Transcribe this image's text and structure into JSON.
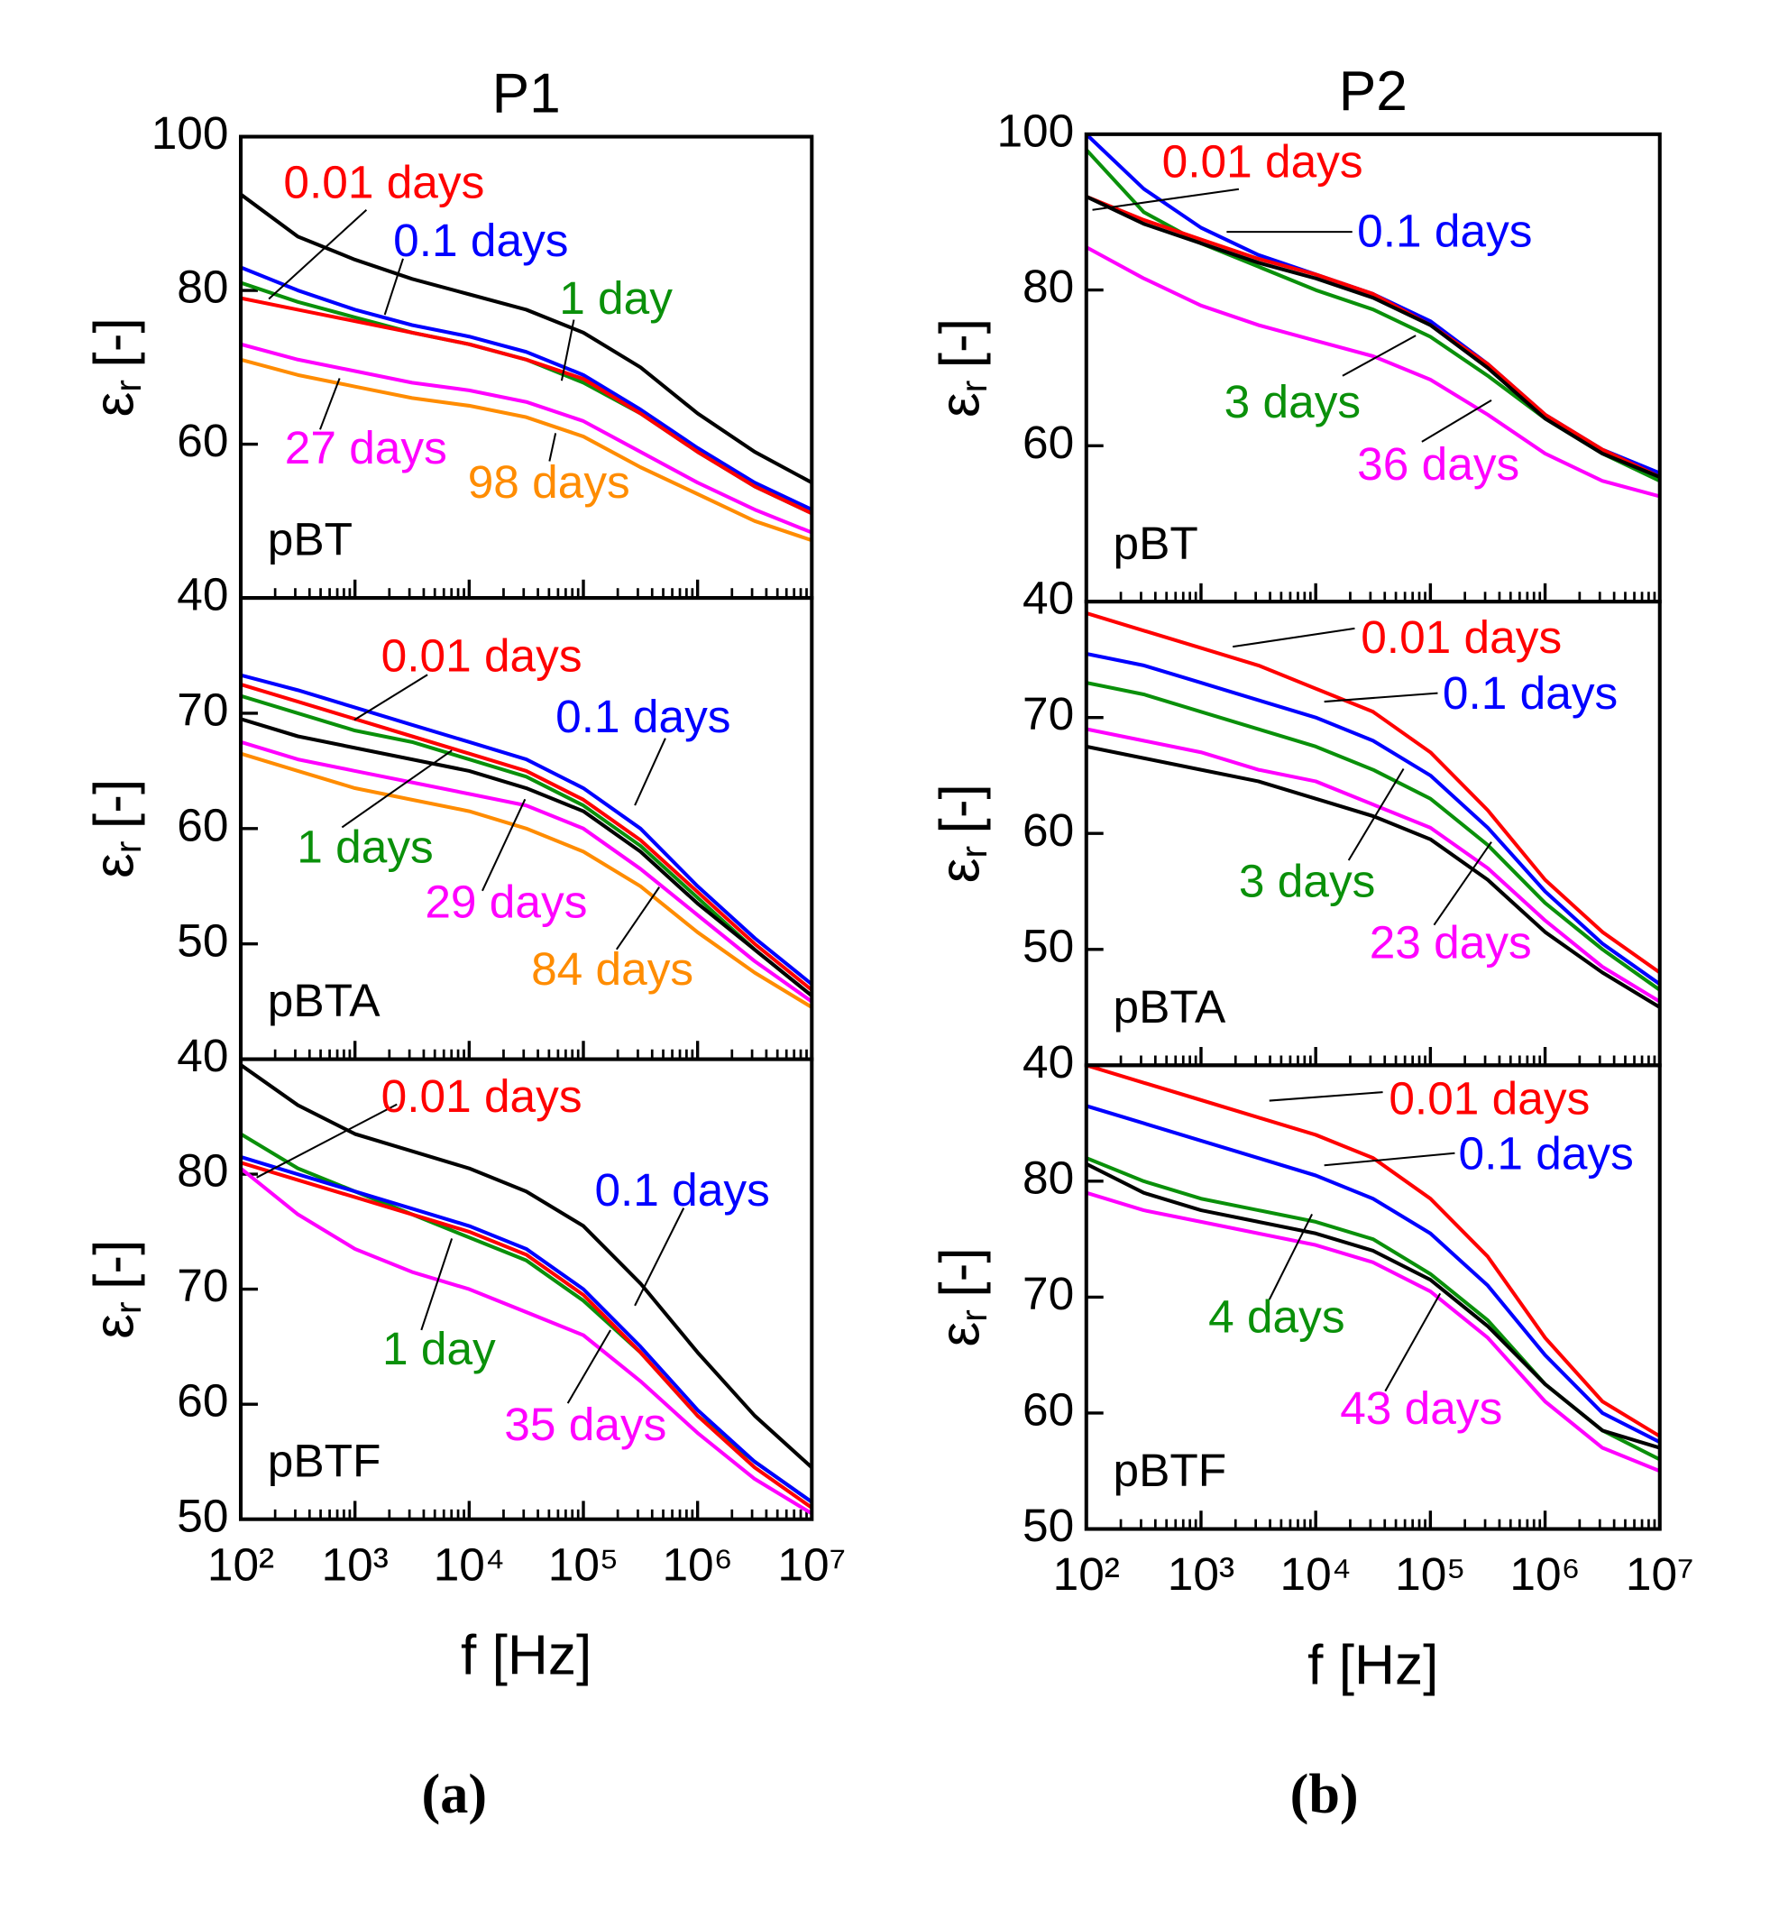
{
  "panel_captions": [
    "(a)",
    "(b)"
  ],
  "chart_data": [
    {
      "type": "line",
      "title": "P1",
      "panel_label": "pBT",
      "ylabel": {
        "symbol": "ε",
        "subscript": "r",
        "unit": "[-]"
      },
      "log_x": true,
      "xlim": [
        100,
        10000000
      ],
      "ylim": [
        40,
        100
      ],
      "yticks": [
        40,
        60,
        80,
        100
      ],
      "xticks": [
        100,
        1000,
        10000,
        100000,
        1000000,
        10000000
      ],
      "x": [
        100,
        316,
        1000,
        3162,
        10000,
        31623,
        100000,
        316228,
        1000000,
        3162278,
        10000000
      ],
      "series": [
        {
          "color": "#000000",
          "values": [
            92.5,
            87,
            84,
            81.5,
            79.5,
            77.5,
            74.5,
            70,
            64,
            59,
            55
          ]
        },
        {
          "color": "#0000ff",
          "values": [
            83,
            80,
            77.5,
            75.5,
            74,
            72,
            69,
            64.5,
            59.5,
            55,
            51.5
          ]
        },
        {
          "color": "#0a900a",
          "values": [
            81,
            78.5,
            76.5,
            74.5,
            73,
            71,
            68,
            64,
            59,
            54.5,
            51
          ]
        },
        {
          "color": "#ff0000",
          "values": [
            79,
            77.5,
            76,
            74.5,
            73,
            71,
            68.5,
            64,
            59,
            54.5,
            51
          ]
        },
        {
          "color": "#ff00ff",
          "values": [
            73,
            71,
            69.5,
            68,
            67,
            65.5,
            63,
            59,
            55,
            51.5,
            48.5
          ]
        },
        {
          "color": "#ff8c00",
          "values": [
            71,
            69,
            67.5,
            66,
            65,
            63.5,
            61,
            57,
            53.5,
            50,
            47.5
          ]
        }
      ],
      "annotations": [
        {
          "text": "0.01 days",
          "color": "#ff0000"
        },
        {
          "text": "0.1 days",
          "color": "#0000ff"
        },
        {
          "text": "1 day",
          "color": "#0a900a"
        },
        {
          "text": "27 days",
          "color": "#ff00ff"
        },
        {
          "text": "98 days",
          "color": "#ff8c00"
        }
      ]
    },
    {
      "type": "line",
      "panel_label": "pBTA",
      "ylabel": {
        "symbol": "ε",
        "subscript": "r",
        "unit": "[-]"
      },
      "log_x": true,
      "xlim": [
        100,
        10000000
      ],
      "ylim": [
        40,
        80
      ],
      "yticks": [
        40,
        50,
        60,
        70
      ],
      "xticks": [
        100,
        1000,
        10000,
        100000,
        1000000,
        10000000
      ],
      "x": [
        100,
        316,
        1000,
        3162,
        10000,
        31623,
        100000,
        316228,
        1000000,
        3162278,
        10000000
      ],
      "series": [
        {
          "color": "#0000ff",
          "values": [
            73.3,
            72,
            70.5,
            69,
            67.5,
            66,
            63.5,
            60,
            55,
            50.5,
            46.5
          ]
        },
        {
          "color": "#ff0000",
          "values": [
            72.5,
            71,
            69.5,
            68,
            66.5,
            65,
            62.5,
            59,
            54.5,
            50,
            46
          ]
        },
        {
          "color": "#0a900a",
          "values": [
            71.5,
            70,
            68.5,
            67.5,
            66,
            64.5,
            62,
            58.5,
            54,
            49.5,
            45.5
          ]
        },
        {
          "color": "#000000",
          "values": [
            69.5,
            68,
            67,
            66,
            65,
            63.5,
            61.5,
            58,
            53.5,
            49.5,
            45.5
          ]
        },
        {
          "color": "#ff00ff",
          "values": [
            67.5,
            66,
            65,
            64,
            63,
            62,
            60,
            56.5,
            52.5,
            48.5,
            45
          ]
        },
        {
          "color": "#ff8c00",
          "values": [
            66.5,
            65,
            63.5,
            62.5,
            61.5,
            60,
            58,
            55,
            51,
            47.5,
            44.5
          ]
        }
      ],
      "annotations": [
        {
          "text": "0.01 days",
          "color": "#ff0000"
        },
        {
          "text": "0.1 days",
          "color": "#0000ff"
        },
        {
          "text": "1 days",
          "color": "#0a900a"
        },
        {
          "text": "29 days",
          "color": "#ff00ff"
        },
        {
          "text": "84 days",
          "color": "#ff8c00"
        }
      ]
    },
    {
      "type": "line",
      "panel_label": "pBTF",
      "ylabel": {
        "symbol": "ε",
        "subscript": "r",
        "unit": "[-]"
      },
      "xlabel": "f [Hz]",
      "log_x": true,
      "xlim": [
        100,
        10000000
      ],
      "ylim": [
        50,
        90
      ],
      "yticks": [
        50,
        60,
        70,
        80
      ],
      "xticks": [
        {
          "value": 100,
          "label": "10²"
        },
        {
          "value": 1000,
          "label": "10³"
        },
        {
          "value": 10000,
          "label": "10⁴"
        },
        {
          "value": 100000,
          "label": "10⁵"
        },
        {
          "value": 1000000,
          "label": "10⁶"
        },
        {
          "value": 10000000,
          "label": "10⁷"
        }
      ],
      "x": [
        100,
        316,
        1000,
        3162,
        10000,
        31623,
        100000,
        316228,
        1000000,
        3162278,
        10000000
      ],
      "series": [
        {
          "color": "#000000",
          "values": [
            89.5,
            86,
            83.5,
            82,
            80.5,
            78.5,
            75.5,
            70.5,
            64.5,
            59,
            54.5
          ]
        },
        {
          "color": "#0a900a",
          "values": [
            83.5,
            80.5,
            78.5,
            76.5,
            74.5,
            72.5,
            69,
            64.5,
            59,
            55,
            51.5
          ]
        },
        {
          "color": "#0000ff",
          "values": [
            81.5,
            80,
            78.5,
            77,
            75.5,
            73.5,
            70,
            65,
            59.5,
            55,
            51.5
          ]
        },
        {
          "color": "#ff0000",
          "values": [
            81,
            79.5,
            78,
            76.5,
            75,
            73,
            69.5,
            64.5,
            59,
            54.5,
            51
          ]
        },
        {
          "color": "#ff00ff",
          "values": [
            80.5,
            76.5,
            73.5,
            71.5,
            70,
            68,
            66,
            62,
            57.5,
            53.5,
            50.5
          ]
        }
      ],
      "annotations": [
        {
          "text": "0.01 days",
          "color": "#ff0000"
        },
        {
          "text": "0.1 days",
          "color": "#0000ff"
        },
        {
          "text": "1 day",
          "color": "#0a900a"
        },
        {
          "text": "35 days",
          "color": "#ff00ff"
        }
      ]
    },
    {
      "type": "line",
      "title": "P2",
      "panel_label": "pBT",
      "ylabel": {
        "symbol": "ε",
        "subscript": "r",
        "unit": "[-]"
      },
      "log_x": true,
      "xlim": [
        100,
        10000000
      ],
      "ylim": [
        40,
        100
      ],
      "yticks": [
        40,
        60,
        80,
        100
      ],
      "xticks": [
        100,
        1000,
        10000,
        100000,
        1000000,
        10000000
      ],
      "x": [
        100,
        316,
        1000,
        3162,
        10000,
        31623,
        100000,
        316228,
        1000000,
        3162278,
        10000000
      ],
      "series": [
        {
          "color": "#0000ff",
          "values": [
            100,
            93,
            88,
            84.5,
            82,
            79.5,
            76,
            70.5,
            64,
            59.5,
            56.5
          ]
        },
        {
          "color": "#0a900a",
          "values": [
            98,
            90,
            86,
            83,
            80,
            77.5,
            74,
            69,
            63.5,
            59,
            55.5
          ]
        },
        {
          "color": "#ff0000",
          "values": [
            92,
            89,
            86.5,
            84,
            82,
            79.5,
            75.5,
            70.5,
            64,
            59.5,
            56
          ]
        },
        {
          "color": "#000000",
          "values": [
            92,
            88.5,
            86,
            83.5,
            81.5,
            79,
            75.5,
            70,
            63.5,
            59,
            56
          ]
        },
        {
          "color": "#ff00ff",
          "values": [
            85.5,
            81.5,
            78,
            75.5,
            73.5,
            71.5,
            68.5,
            64,
            59,
            55.5,
            53.5
          ]
        }
      ],
      "annotations": [
        {
          "text": "0.01 days",
          "color": "#ff0000"
        },
        {
          "text": "0.1 days",
          "color": "#0000ff"
        },
        {
          "text": "3 days",
          "color": "#0a900a"
        },
        {
          "text": "36 days",
          "color": "#ff00ff"
        }
      ]
    },
    {
      "type": "line",
      "panel_label": "pBTA",
      "ylabel": {
        "symbol": "ε",
        "subscript": "r",
        "unit": "[-]"
      },
      "log_x": true,
      "xlim": [
        100,
        10000000
      ],
      "ylim": [
        40,
        80
      ],
      "yticks": [
        40,
        50,
        60,
        70
      ],
      "xticks": [
        100,
        1000,
        10000,
        100000,
        1000000,
        10000000
      ],
      "x": [
        100,
        316,
        1000,
        3162,
        10000,
        31623,
        100000,
        316228,
        1000000,
        3162278,
        10000000
      ],
      "series": [
        {
          "color": "#ff0000",
          "values": [
            79,
            77.5,
            76,
            74.5,
            72.5,
            70.5,
            67,
            62,
            56,
            51.5,
            48
          ]
        },
        {
          "color": "#0000ff",
          "values": [
            75.5,
            74.5,
            73,
            71.5,
            70,
            68,
            65,
            60.5,
            55,
            50.5,
            47
          ]
        },
        {
          "color": "#0a900a",
          "values": [
            73,
            72,
            70.5,
            69,
            67.5,
            65.5,
            63,
            59,
            54,
            50,
            46.5
          ]
        },
        {
          "color": "#ff00ff",
          "values": [
            69,
            68,
            67,
            65.5,
            64.5,
            62.5,
            60.5,
            57,
            52.5,
            48.5,
            45.5
          ]
        },
        {
          "color": "#000000",
          "values": [
            67.5,
            66.5,
            65.5,
            64.5,
            63,
            61.5,
            59.5,
            56,
            51.5,
            48,
            45
          ]
        }
      ],
      "annotations": [
        {
          "text": "0.01 days",
          "color": "#ff0000"
        },
        {
          "text": "0.1 days",
          "color": "#0000ff"
        },
        {
          "text": "3 days",
          "color": "#0a900a"
        },
        {
          "text": "23 days",
          "color": "#ff00ff"
        }
      ]
    },
    {
      "type": "line",
      "panel_label": "pBTF",
      "ylabel": {
        "symbol": "ε",
        "subscript": "r",
        "unit": "[-]"
      },
      "xlabel": "f [Hz]",
      "log_x": true,
      "xlim": [
        100,
        10000000
      ],
      "ylim": [
        50,
        90
      ],
      "yticks": [
        50,
        60,
        70,
        80
      ],
      "xticks": [
        {
          "value": 100,
          "label": "10²"
        },
        {
          "value": 1000,
          "label": "10³"
        },
        {
          "value": 10000,
          "label": "10⁴"
        },
        {
          "value": 100000,
          "label": "10⁵"
        },
        {
          "value": 1000000,
          "label": "10⁶"
        },
        {
          "value": 10000000,
          "label": "10⁷"
        }
      ],
      "x": [
        100,
        316,
        1000,
        3162,
        10000,
        31623,
        100000,
        316228,
        1000000,
        3162278,
        10000000
      ],
      "series": [
        {
          "color": "#ff0000",
          "values": [
            90,
            88.5,
            87,
            85.5,
            84,
            82,
            78.5,
            73.5,
            66.5,
            61,
            58
          ]
        },
        {
          "color": "#0000ff",
          "values": [
            86.5,
            85,
            83.5,
            82,
            80.5,
            78.5,
            75.5,
            71,
            65,
            60,
            57.5
          ]
        },
        {
          "color": "#0a900a",
          "values": [
            82,
            80,
            78.5,
            77.5,
            76.5,
            75,
            72,
            68,
            62.5,
            58.5,
            56
          ]
        },
        {
          "color": "#000000",
          "values": [
            81.5,
            79,
            77.5,
            76.5,
            75.5,
            74,
            71.5,
            67.5,
            62.5,
            58.5,
            57
          ]
        },
        {
          "color": "#ff00ff",
          "values": [
            79,
            77.5,
            76.5,
            75.5,
            74.5,
            73,
            70.5,
            66.5,
            61,
            57,
            55
          ]
        }
      ],
      "annotations": [
        {
          "text": "0.01 days",
          "color": "#ff0000"
        },
        {
          "text": "0.1 days",
          "color": "#0000ff"
        },
        {
          "text": "4 days",
          "color": "#0a900a"
        },
        {
          "text": "43 days",
          "color": "#ff00ff"
        }
      ]
    }
  ]
}
